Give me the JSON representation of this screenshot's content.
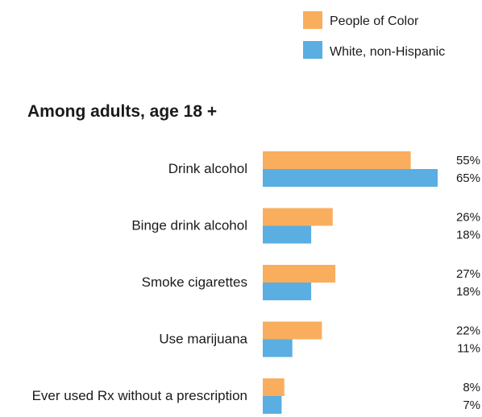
{
  "chart_data": {
    "type": "bar",
    "orientation": "horizontal",
    "title": "",
    "subtitle": "Among adults, age 18 +",
    "xlabel": "",
    "ylabel": "",
    "xlim": [
      0,
      65
    ],
    "grid": false,
    "legend_position": "top-right",
    "categories": [
      "Drink alcohol",
      "Binge drink alcohol",
      "Smoke cigarettes",
      "Use marijuana",
      "Ever used Rx without a prescription"
    ],
    "series": [
      {
        "name": "People of Color",
        "color": "#F9AE5E",
        "values": [
          55,
          26,
          27,
          22,
          8
        ],
        "labels": [
          "55%",
          "26%",
          "27%",
          "22%",
          "8%"
        ]
      },
      {
        "name": "White, non-Hispanic",
        "color": "#5AAEE2",
        "values": [
          65,
          18,
          18,
          11,
          7
        ],
        "labels": [
          "65%",
          "18%",
          "18%",
          "11%",
          "7%"
        ]
      }
    ]
  }
}
